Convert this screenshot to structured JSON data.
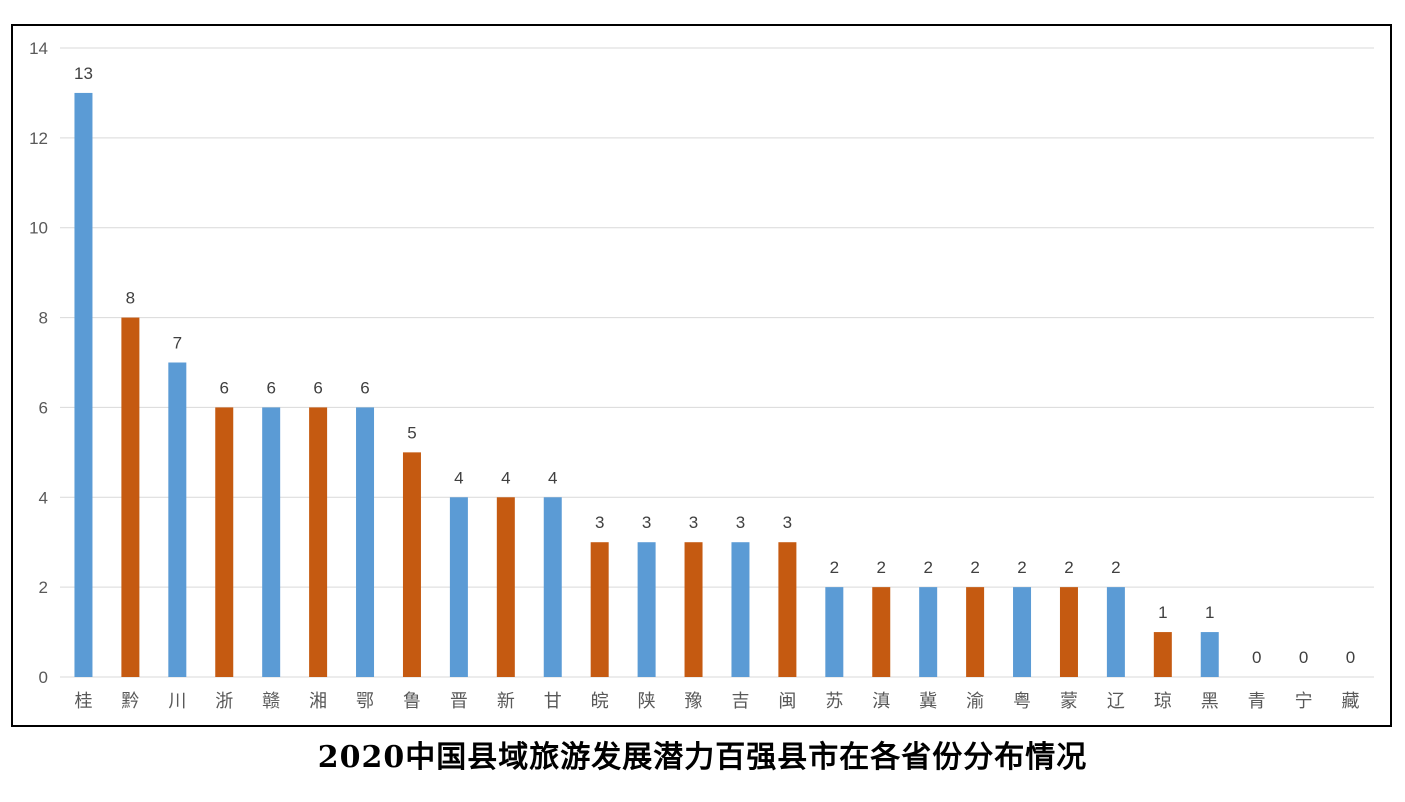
{
  "chart_data": {
    "type": "bar",
    "title": "2020中国县域旅游发展潜力百强县市在各省份分布情况",
    "xlabel": "",
    "ylabel": "",
    "ylim": [
      0,
      14
    ],
    "yticks": [
      0,
      2,
      4,
      6,
      8,
      10,
      12,
      14
    ],
    "grid": true,
    "data_labels": true,
    "colors": {
      "blue": "#5b9bd5",
      "orange": "#c55a11"
    },
    "categories": [
      "桂",
      "黔",
      "川",
      "浙",
      "赣",
      "湘",
      "鄂",
      "鲁",
      "晋",
      "新",
      "甘",
      "皖",
      "陕",
      "豫",
      "吉",
      "闽",
      "苏",
      "滇",
      "冀",
      "渝",
      "粤",
      "蒙",
      "辽",
      "琼",
      "黑",
      "青",
      "宁",
      "藏"
    ],
    "values": [
      13,
      8,
      7,
      6,
      6,
      6,
      6,
      5,
      4,
      4,
      4,
      3,
      3,
      3,
      3,
      3,
      2,
      2,
      2,
      2,
      2,
      2,
      2,
      1,
      1,
      0,
      0,
      0
    ],
    "bar_colors": [
      "blue",
      "orange",
      "blue",
      "orange",
      "blue",
      "orange",
      "blue",
      "orange",
      "blue",
      "orange",
      "blue",
      "orange",
      "blue",
      "orange",
      "blue",
      "orange",
      "blue",
      "orange",
      "blue",
      "orange",
      "blue",
      "orange",
      "blue",
      "orange",
      "blue",
      "orange",
      "blue",
      "orange"
    ]
  }
}
